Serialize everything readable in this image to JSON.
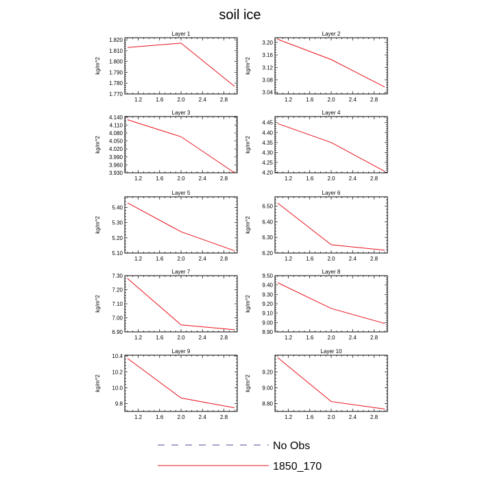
{
  "title": "soil ice",
  "legend": {
    "items": [
      {
        "label": "No Obs",
        "color": "#4a4a9a",
        "dashed": true
      },
      {
        "label": "1850_170",
        "color": "#e8101a",
        "dashed": false
      }
    ]
  },
  "chart_data": [
    {
      "type": "line",
      "title": "Layer 1",
      "ylabel": "kg/m^2",
      "x": [
        1.0,
        2.0,
        3.0
      ],
      "series": [
        {
          "name": "1850_170",
          "values": [
            1.813,
            1.817,
            1.777
          ]
        }
      ],
      "xlim": [
        0.95,
        3.05
      ],
      "ylim": [
        1.77,
        1.822
      ],
      "xticks": [
        1.2,
        1.6,
        2.0,
        2.4,
        2.8
      ],
      "xtick_labels": [
        "1.2",
        "1.6",
        "2.0",
        "2.4",
        "2.8"
      ],
      "yticks": [
        1.77,
        1.78,
        1.79,
        1.8,
        1.81,
        1.82
      ],
      "ytick_labels": [
        "1.770",
        "1.780",
        "1.790",
        "1.800",
        "1.810",
        "1.820"
      ]
    },
    {
      "type": "line",
      "title": "Layer 2",
      "ylabel": "kg/m^2",
      "x": [
        1.0,
        2.0,
        3.0
      ],
      "series": [
        {
          "name": "1850_170",
          "values": [
            3.21,
            3.145,
            3.057
          ]
        }
      ],
      "xlim": [
        0.95,
        3.05
      ],
      "ylim": [
        3.035,
        3.215
      ],
      "xticks": [
        1.2,
        1.6,
        2.0,
        2.4,
        2.8
      ],
      "xtick_labels": [
        "1.2",
        "1.6",
        "2.0",
        "2.4",
        "2.8"
      ],
      "yticks": [
        3.04,
        3.08,
        3.12,
        3.16,
        3.2
      ],
      "ytick_labels": [
        "3.04",
        "3.08",
        "3.12",
        "3.16",
        "3.20"
      ]
    },
    {
      "type": "line",
      "title": "Layer 3",
      "ylabel": "kg/m^2",
      "x": [
        1.0,
        2.0,
        3.0
      ],
      "series": [
        {
          "name": "1850_170",
          "values": [
            4.13,
            4.066,
            3.93
          ]
        }
      ],
      "xlim": [
        0.95,
        3.05
      ],
      "ylim": [
        3.93,
        4.142
      ],
      "xticks": [
        1.2,
        1.6,
        2.0,
        2.4,
        2.8
      ],
      "xtick_labels": [
        "1.2",
        "1.6",
        "2.0",
        "2.4",
        "2.8"
      ],
      "yticks": [
        3.93,
        3.96,
        3.99,
        4.02,
        4.05,
        4.08,
        4.11,
        4.14
      ],
      "ytick_labels": [
        "3.930",
        "3.960",
        "3.990",
        "4.020",
        "4.050",
        "4.080",
        "4.110",
        "4.140"
      ]
    },
    {
      "type": "line",
      "title": "Layer 4",
      "ylabel": "kg/m^2",
      "x": [
        1.0,
        2.0,
        3.0
      ],
      "series": [
        {
          "name": "1850_170",
          "values": [
            4.445,
            4.35,
            4.205
          ]
        }
      ],
      "xlim": [
        0.95,
        3.05
      ],
      "ylim": [
        4.198,
        4.48
      ],
      "xticks": [
        1.2,
        1.6,
        2.0,
        2.4,
        2.8
      ],
      "xtick_labels": [
        "1.2",
        "1.6",
        "2.0",
        "2.4",
        "2.8"
      ],
      "yticks": [
        4.2,
        4.25,
        4.3,
        4.35,
        4.4,
        4.45
      ],
      "ytick_labels": [
        "4.20",
        "4.25",
        "4.30",
        "4.35",
        "4.40",
        "4.45"
      ]
    },
    {
      "type": "line",
      "title": "Layer 5",
      "ylabel": "kg/m^2",
      "x": [
        1.0,
        2.0,
        3.0
      ],
      "series": [
        {
          "name": "1850_170",
          "values": [
            5.43,
            5.24,
            5.115
          ]
        }
      ],
      "xlim": [
        0.95,
        3.05
      ],
      "ylim": [
        5.1,
        5.47
      ],
      "xticks": [
        1.2,
        1.6,
        2.0,
        2.4,
        2.8
      ],
      "xtick_labels": [
        "1.2",
        "1.6",
        "2.0",
        "2.4",
        "2.8"
      ],
      "yticks": [
        5.1,
        5.2,
        5.3,
        5.4
      ],
      "ytick_labels": [
        "5.10",
        "5.20",
        "5.30",
        "5.40"
      ]
    },
    {
      "type": "line",
      "title": "Layer 6",
      "ylabel": "kg/m^2",
      "x": [
        1.0,
        2.0,
        3.0
      ],
      "series": [
        {
          "name": "1850_170",
          "values": [
            6.52,
            6.253,
            6.218
          ]
        }
      ],
      "xlim": [
        0.95,
        3.05
      ],
      "ylim": [
        6.2,
        6.56
      ],
      "xticks": [
        1.2,
        1.6,
        2.0,
        2.4,
        2.8
      ],
      "xtick_labels": [
        "1.2",
        "1.6",
        "2.0",
        "2.4",
        "2.8"
      ],
      "yticks": [
        6.2,
        6.3,
        6.4,
        6.5
      ],
      "ytick_labels": [
        "6.20",
        "6.30",
        "6.40",
        "6.50"
      ]
    },
    {
      "type": "line",
      "title": "Layer 7",
      "ylabel": "kg/m^2",
      "x": [
        1.0,
        2.0,
        3.0
      ],
      "series": [
        {
          "name": "1850_170",
          "values": [
            7.28,
            6.95,
            6.915
          ]
        }
      ],
      "xlim": [
        0.95,
        3.05
      ],
      "ylim": [
        6.9,
        7.3
      ],
      "xticks": [
        1.2,
        1.6,
        2.0,
        2.4,
        2.8
      ],
      "xtick_labels": [
        "1.2",
        "1.6",
        "2.0",
        "2.4",
        "2.8"
      ],
      "yticks": [
        6.9,
        7.0,
        7.1,
        7.2,
        7.3
      ],
      "ytick_labels": [
        "6.90",
        "7.00",
        "7.10",
        "7.20",
        "7.30"
      ]
    },
    {
      "type": "line",
      "title": "Layer 8",
      "ylabel": "kg/m^2",
      "x": [
        1.0,
        2.0,
        3.0
      ],
      "series": [
        {
          "name": "1850_170",
          "values": [
            9.425,
            9.15,
            8.99
          ]
        }
      ],
      "xlim": [
        0.95,
        3.05
      ],
      "ylim": [
        8.9,
        9.5
      ],
      "xticks": [
        1.2,
        1.6,
        2.0,
        2.4,
        2.8
      ],
      "xtick_labels": [
        "1.2",
        "1.6",
        "2.0",
        "2.4",
        "2.8"
      ],
      "yticks": [
        8.9,
        9.0,
        9.1,
        9.2,
        9.3,
        9.4,
        9.5
      ],
      "ytick_labels": [
        "8.90",
        "9.00",
        "9.10",
        "9.20",
        "9.30",
        "9.40",
        "9.50"
      ]
    },
    {
      "type": "line",
      "title": "Layer 9",
      "ylabel": "kg/m^2",
      "x": [
        1.0,
        2.0,
        3.0
      ],
      "series": [
        {
          "name": "1850_170",
          "values": [
            10.37,
            9.87,
            9.745
          ]
        }
      ],
      "xlim": [
        0.95,
        3.05
      ],
      "ylim": [
        9.7,
        10.41
      ],
      "xticks": [
        1.2,
        1.6,
        2.0,
        2.4,
        2.8
      ],
      "xtick_labels": [
        "1.2",
        "1.6",
        "2.0",
        "2.4",
        "2.8"
      ],
      "yticks": [
        9.8,
        10.0,
        10.2,
        10.4
      ],
      "ytick_labels": [
        "9.8",
        "10.0",
        "10.2",
        "10.4"
      ]
    },
    {
      "type": "line",
      "title": "Layer 10",
      "ylabel": "kg/m^2",
      "x": [
        1.0,
        2.0,
        3.0
      ],
      "series": [
        {
          "name": "1850_170",
          "values": [
            9.38,
            8.825,
            8.73
          ]
        }
      ],
      "xlim": [
        0.95,
        3.05
      ],
      "ylim": [
        8.7,
        9.41
      ],
      "xticks": [
        1.2,
        1.6,
        2.0,
        2.4,
        2.8
      ],
      "xtick_labels": [
        "1.2",
        "1.6",
        "2.0",
        "2.4",
        "2.8"
      ],
      "yticks": [
        8.8,
        9.0,
        9.2
      ],
      "ytick_labels": [
        "8.80",
        "9.00",
        "9.20"
      ]
    }
  ]
}
